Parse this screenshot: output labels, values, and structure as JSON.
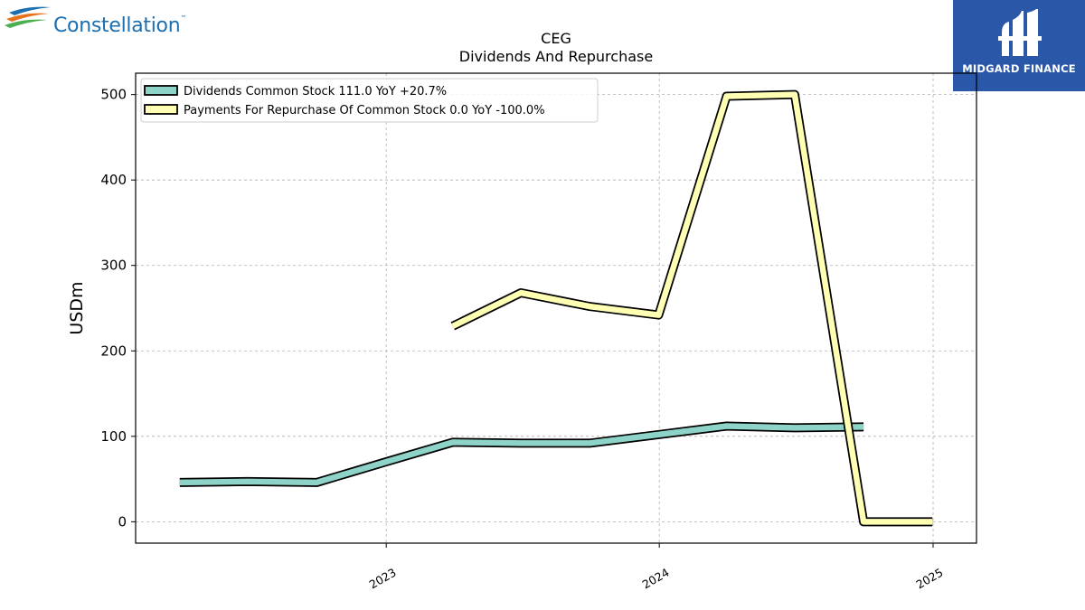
{
  "header": {
    "company_logo_text": "Constellation",
    "company_logo_tm": "™",
    "publisher_logo_text": "MIDGARD FINANCE"
  },
  "colors": {
    "dividends": "#8dd3c7",
    "repurchase": "#ffffb3",
    "outline": "#000000",
    "grid": "#b0b0b0",
    "publisher_bg": "#2a57a8"
  },
  "chart_data": {
    "type": "line",
    "title": "CEG",
    "subtitle": "Dividends And Repurchase",
    "ylabel": "USDm",
    "xlabel": "",
    "ylim": [
      -25,
      525
    ],
    "xlim": [
      "2022-01-31",
      "2025-02-28"
    ],
    "yticks": [
      0,
      100,
      200,
      300,
      400,
      500
    ],
    "xticks": [
      {
        "label": "2023",
        "date": "2023-01-01"
      },
      {
        "label": "2024",
        "date": "2024-01-01"
      },
      {
        "label": "2025",
        "date": "2025-01-01"
      }
    ],
    "grid": true,
    "legend_position": "top-left",
    "series": [
      {
        "name": "Dividends Common Stock  111.0 YoY +20.7%",
        "color": "#8dd3c7",
        "points": [
          {
            "x": "2022-03-31",
            "y": 46
          },
          {
            "x": "2022-06-30",
            "y": 47
          },
          {
            "x": "2022-09-30",
            "y": 46
          },
          {
            "x": "2022-12-31",
            "y": 70
          },
          {
            "x": "2023-03-31",
            "y": 93
          },
          {
            "x": "2023-06-30",
            "y": 92
          },
          {
            "x": "2023-09-30",
            "y": 92
          },
          {
            "x": "2023-12-31",
            "y": 102
          },
          {
            "x": "2024-03-31",
            "y": 112
          },
          {
            "x": "2024-06-30",
            "y": 110
          },
          {
            "x": "2024-09-30",
            "y": 111
          }
        ]
      },
      {
        "name": "Payments For Repurchase Of Common Stock  0.0 YoY -100.0%",
        "color": "#ffffb3",
        "points": [
          {
            "x": "2023-03-31",
            "y": 229
          },
          {
            "x": "2023-06-30",
            "y": 268
          },
          {
            "x": "2023-09-30",
            "y": 252
          },
          {
            "x": "2023-12-31",
            "y": 242
          },
          {
            "x": "2024-03-31",
            "y": 498
          },
          {
            "x": "2024-06-30",
            "y": 500
          },
          {
            "x": "2024-09-30",
            "y": 0
          },
          {
            "x": "2024-12-31",
            "y": 0
          }
        ]
      }
    ]
  }
}
